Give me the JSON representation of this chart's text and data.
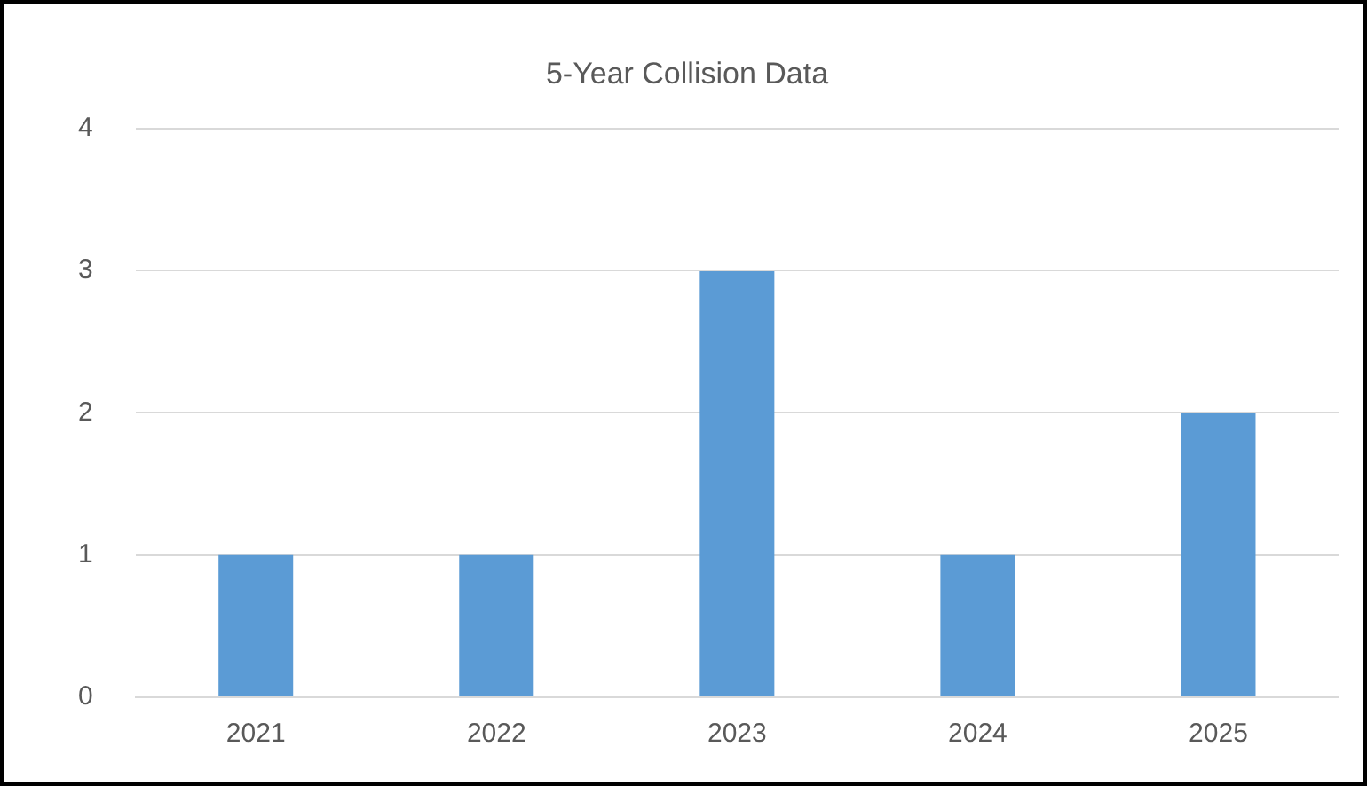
{
  "chart_data": {
    "type": "bar",
    "title": "5-Year Collision Data",
    "categories": [
      "2021",
      "2022",
      "2023",
      "2024",
      "2025"
    ],
    "values": [
      1,
      1,
      3,
      1,
      2
    ],
    "color": "#5b9bd5",
    "ylim": [
      0,
      4
    ],
    "yticks": [
      0,
      1,
      2,
      3,
      4
    ],
    "grid": "y",
    "legend": false
  }
}
